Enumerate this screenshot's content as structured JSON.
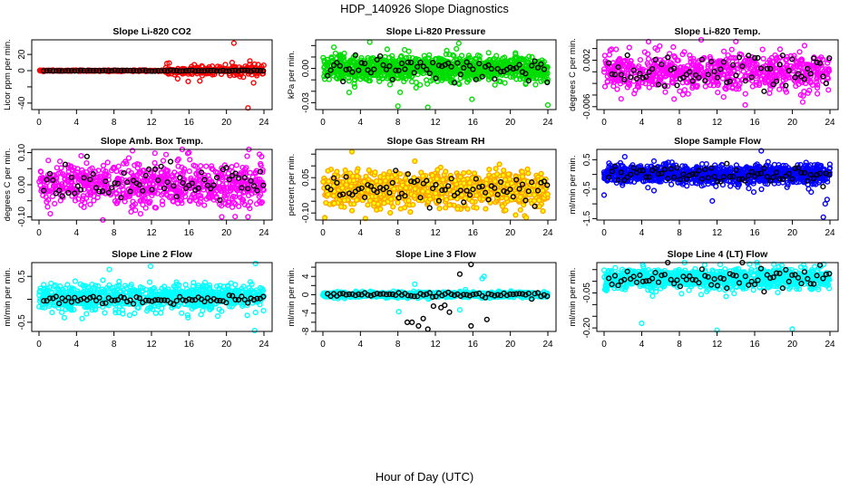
{
  "title": "HDP_140926  Slope Diagnostics",
  "xlabel": "Hour of Day (UTC)",
  "chart_data": [
    {
      "type": "scatter",
      "title": "Slope Li-820 CO2",
      "ylabel": "Licor ppm per min.",
      "color": "#ff0000",
      "xlim": [
        0,
        24
      ],
      "ylim": [
        -48,
        38
      ],
      "xticks": [
        0,
        4,
        8,
        12,
        16,
        20,
        24
      ],
      "yticks": [
        -40,
        -20,
        0,
        20
      ],
      "ytick_labels": [
        "-40",
        "",
        "0",
        "20"
      ],
      "n": 420,
      "mean": 0,
      "sd": 0.4,
      "change_hour": 13.5,
      "sd_after": 3.5,
      "black_sd": 0.3,
      "outliers": [
        [
          20.8,
          34
        ],
        [
          20.6,
          10
        ],
        [
          22.3,
          -46
        ],
        [
          22.9,
          -15
        ],
        [
          22.5,
          12
        ],
        [
          14.8,
          -10
        ],
        [
          23,
          8
        ],
        [
          21.8,
          -8
        ]
      ]
    },
    {
      "type": "scatter",
      "title": "Slope Li-820 Pressure",
      "ylabel": "kPa per min.",
      "color": "#00dd00",
      "xlim": [
        0,
        24
      ],
      "ylim": [
        -0.036,
        0.025
      ],
      "xticks": [
        0,
        4,
        8,
        12,
        16,
        20,
        24
      ],
      "yticks": [
        -0.03,
        -0.02,
        -0.01,
        0,
        0.01,
        0.02
      ],
      "ytick_labels": [
        "-0.03",
        "",
        "",
        "0.00",
        "",
        ""
      ],
      "n": 1100,
      "mean": 0,
      "sd": 0.006,
      "black_sd": 0.006,
      "outliers": [
        [
          5,
          0.023
        ],
        [
          14.5,
          0.022
        ],
        [
          8,
          -0.033
        ],
        [
          11.2,
          -0.034
        ],
        [
          24,
          -0.032
        ],
        [
          15.9,
          -0.027
        ],
        [
          2.8,
          -0.021
        ]
      ]
    },
    {
      "type": "scatter",
      "title": "Slope Li-820 Temp.",
      "ylabel": "degrees C per min.",
      "color": "#ff00ff",
      "xlim": [
        0,
        24
      ],
      "ylim": [
        -0.0065,
        0.0055
      ],
      "xticks": [
        0,
        4,
        8,
        12,
        16,
        20,
        24
      ],
      "yticks": [
        -0.006,
        -0.004,
        -0.002,
        0,
        0.002,
        0.004
      ],
      "ytick_labels": [
        "-0.006",
        "",
        "",
        "",
        "0.002",
        ""
      ],
      "n": 700,
      "mean": 0,
      "sd": 0.0018,
      "black_sd": 0.0018,
      "outliers": [
        [
          14,
          0.0052
        ],
        [
          15,
          -0.0057
        ],
        [
          21.3,
          0.0045
        ]
      ]
    },
    {
      "type": "scatter",
      "title": "Slope Amb. Box Temp.",
      "ylabel": "degrees C per min.",
      "color": "#ff00ff",
      "xlim": [
        0,
        24
      ],
      "ylim": [
        -0.11,
        0.11
      ],
      "xticks": [
        0,
        4,
        8,
        12,
        16,
        20,
        24
      ],
      "yticks": [
        -0.1,
        -0.05,
        0,
        0.05,
        0.1
      ],
      "ytick_labels": [
        "-0.10",
        "",
        "0.00",
        "",
        "0.10"
      ],
      "n": 750,
      "mean": 0,
      "sd": 0.038,
      "black_sd": 0.035,
      "outliers": [
        [
          4.5,
          0.09
        ],
        [
          16,
          0.1
        ],
        [
          19.5,
          -0.1
        ],
        [
          22.3,
          -0.1
        ]
      ]
    },
    {
      "type": "scatter",
      "title": "Slope Gas Stream RH",
      "ylabel": "percent per min.",
      "color": "#ffa500",
      "fill": "#ffff00",
      "xlim": [
        0,
        24
      ],
      "ylim": [
        -0.13,
        0.17
      ],
      "xticks": [
        0,
        4,
        8,
        12,
        16,
        20,
        24
      ],
      "yticks": [
        -0.1,
        -0.05,
        0,
        0.05,
        0.1,
        0.15
      ],
      "ytick_labels": [
        "-0.10",
        "",
        "",
        "0.05",
        "",
        ""
      ],
      "n": 1000,
      "mean": 0,
      "sd": 0.04,
      "black_sd": 0.035,
      "outliers": [
        [
          3.1,
          0.16
        ],
        [
          9.8,
          0.12
        ],
        [
          0.2,
          -0.12
        ],
        [
          21.7,
          -0.12
        ]
      ]
    },
    {
      "type": "scatter",
      "title": "Slope Sample Flow",
      "ylabel": "ml/min per min.",
      "color": "#0000ff",
      "xlim": [
        0,
        24
      ],
      "ylim": [
        -1.55,
        0.85
      ],
      "xticks": [
        0,
        4,
        8,
        12,
        16,
        20,
        24
      ],
      "yticks": [
        -1.5,
        -1,
        -0.5,
        0,
        0.5
      ],
      "ytick_labels": [
        "-1.5",
        "",
        "-0.5",
        "",
        "0.5"
      ],
      "n": 1100,
      "mean": 0,
      "sd": 0.17,
      "black_sd": 0.15,
      "outliers": [
        [
          16.7,
          0.8
        ],
        [
          2.2,
          0.6
        ],
        [
          0,
          -0.7
        ],
        [
          11.5,
          -0.9
        ],
        [
          15.9,
          -0.6
        ],
        [
          22,
          -0.6
        ],
        [
          23.3,
          -1.45
        ],
        [
          23.5,
          -1.0
        ],
        [
          23.7,
          -0.85
        ],
        [
          5.3,
          -0.55
        ]
      ]
    },
    {
      "type": "scatter",
      "title": "Slope Line 2 Flow",
      "ylabel": "ml/min per min.",
      "color": "#00ffff",
      "xlim": [
        0,
        24
      ],
      "ylim": [
        -0.7,
        0.8
      ],
      "xticks": [
        0,
        4,
        8,
        12,
        16,
        20,
        24
      ],
      "yticks": [
        -0.5,
        0,
        0.5
      ],
      "ytick_labels": [
        "-0.5",
        "",
        "0.5"
      ],
      "n": 800,
      "mean": 0.05,
      "sd": 0.15,
      "black_sd": 0.05,
      "outliers": [
        [
          23.1,
          0.78
        ],
        [
          11.9,
          0.72
        ],
        [
          7.5,
          0.65
        ],
        [
          23,
          -0.68
        ],
        [
          2.7,
          -0.4
        ],
        [
          15.9,
          -0.4
        ],
        [
          4.6,
          -0.42
        ]
      ]
    },
    {
      "type": "scatter",
      "title": "Slope Line 3 Flow",
      "ylabel": "ml/min per min.",
      "color": "#00ffff",
      "xlim": [
        0,
        24
      ],
      "ylim": [
        -8,
        7
      ],
      "xticks": [
        0,
        4,
        8,
        12,
        16,
        20,
        24
      ],
      "yticks": [
        -8,
        -6,
        -4,
        -2,
        0,
        2,
        4,
        6
      ],
      "ytick_labels": [
        "-8",
        "",
        "-4",
        "",
        "0",
        "",
        "4",
        ""
      ],
      "n": 1100,
      "mean": 0,
      "sd": 0.3,
      "black_sd": 0.3,
      "outliers": [
        [
          8.1,
          -3.7
        ],
        [
          9.8,
          2.3
        ],
        [
          14.6,
          -3.3
        ],
        [
          17,
          3.5
        ],
        [
          17.2,
          4
        ],
        [
          15.8,
          6.6
        ],
        [
          14.6,
          4.5
        ],
        [
          9,
          -6
        ],
        [
          9.5,
          -6
        ],
        [
          10.2,
          -6.8
        ],
        [
          11.2,
          -7.5
        ],
        [
          10.7,
          -5.2
        ],
        [
          11.8,
          -2.5
        ],
        [
          12.6,
          -2.8
        ],
        [
          13,
          -2.3
        ],
        [
          13.5,
          -3.8
        ],
        [
          15.8,
          -6.8
        ],
        [
          17.5,
          -5.4
        ],
        [
          15.2,
          1.1
        ]
      ]
    },
    {
      "type": "scatter",
      "title": "Slope Line 4 (LT) Flow",
      "ylabel": "ml/min per min.",
      "color": "#00ffff",
      "xlim": [
        0,
        24
      ],
      "ylim": [
        -0.215,
        0.08
      ],
      "xticks": [
        0,
        4,
        8,
        12,
        16,
        20,
        24
      ],
      "yticks": [
        -0.2,
        -0.15,
        -0.1,
        -0.05,
        0,
        0.05
      ],
      "ytick_labels": [
        "-0.20",
        "",
        "",
        "-0.05",
        "",
        ""
      ],
      "n": 900,
      "mean": 0.01,
      "sd": 0.025,
      "black_sd": 0.025,
      "outliers": [
        [
          4,
          -0.18
        ],
        [
          12,
          -0.21
        ],
        [
          20,
          -0.205
        ],
        [
          10.7,
          0.07
        ],
        [
          21.2,
          0.07
        ]
      ]
    }
  ]
}
